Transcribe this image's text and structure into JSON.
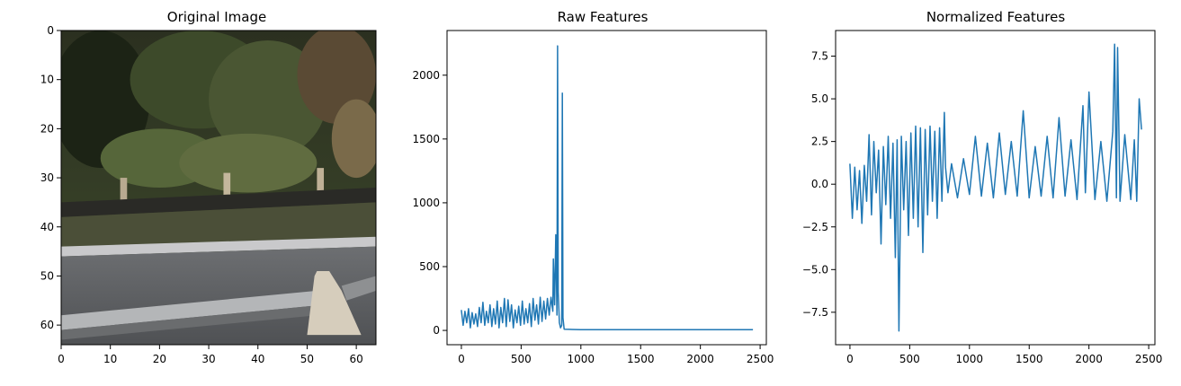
{
  "chart_data": [
    {
      "type": "image",
      "title": "Original Image",
      "xlim": [
        0,
        64
      ],
      "ylim": [
        64,
        0
      ],
      "xticks": [
        0,
        10,
        20,
        30,
        40,
        50,
        60
      ],
      "yticks": [
        0,
        10,
        20,
        30,
        40,
        50,
        60
      ],
      "xlabel": "",
      "ylabel": ""
    },
    {
      "type": "line",
      "title": "Raw Features",
      "xlabel": "",
      "ylabel": "",
      "xlim": [
        -120,
        2552
      ],
      "ylim": [
        -112,
        2350
      ],
      "xticks": [
        0,
        500,
        1000,
        1500,
        2000,
        2500
      ],
      "yticks": [
        0,
        500,
        1000,
        1500,
        2000
      ],
      "color": "#1f77b4",
      "series": [
        {
          "x": [
            0,
            15,
            30,
            45,
            60,
            75,
            90,
            105,
            120,
            135,
            150,
            165,
            180,
            195,
            210,
            225,
            240,
            255,
            270,
            285,
            300,
            315,
            330,
            345,
            360,
            375,
            390,
            405,
            420,
            435,
            450,
            465,
            480,
            495,
            510,
            525,
            540,
            555,
            570,
            585,
            600,
            615,
            630,
            645,
            660,
            675,
            690,
            705,
            720,
            735,
            750,
            765,
            770,
            780,
            790,
            800,
            805,
            810,
            820,
            830,
            840,
            845,
            850,
            860,
            900,
            1000,
            1500,
            2000,
            2440
          ],
          "y": [
            160,
            40,
            150,
            60,
            170,
            20,
            140,
            50,
            130,
            30,
            180,
            60,
            220,
            40,
            150,
            60,
            200,
            30,
            170,
            50,
            230,
            20,
            180,
            60,
            250,
            30,
            240,
            70,
            200,
            20,
            160,
            60,
            190,
            40,
            230,
            50,
            170,
            60,
            210,
            30,
            250,
            80,
            200,
            50,
            260,
            70,
            230,
            90,
            250,
            120,
            260,
            150,
            560,
            200,
            750,
            120,
            2230,
            300,
            60,
            20,
            40,
            1860,
            100,
            10,
            8,
            6,
            6,
            6,
            6
          ]
        }
      ]
    },
    {
      "type": "line",
      "title": "Normalized Features",
      "xlabel": "",
      "ylabel": "",
      "xlim": [
        -120,
        2552
      ],
      "ylim": [
        -9.4,
        9.0
      ],
      "xticks": [
        0,
        500,
        1000,
        1500,
        2000,
        2500
      ],
      "yticks": [
        -7.5,
        -5.0,
        -2.5,
        0.0,
        2.5,
        5.0,
        7.5
      ],
      "color": "#1f77b4",
      "series": [
        {
          "x": [
            0,
            20,
            40,
            60,
            80,
            100,
            120,
            140,
            160,
            180,
            200,
            220,
            240,
            260,
            280,
            300,
            320,
            340,
            360,
            380,
            395,
            410,
            430,
            450,
            470,
            490,
            510,
            530,
            550,
            570,
            590,
            610,
            630,
            650,
            670,
            690,
            710,
            730,
            750,
            770,
            790,
            800,
            820,
            850,
            900,
            950,
            1000,
            1050,
            1100,
            1150,
            1200,
            1250,
            1300,
            1350,
            1400,
            1450,
            1500,
            1550,
            1600,
            1650,
            1700,
            1750,
            1800,
            1850,
            1900,
            1950,
            1970,
            2000,
            2050,
            2100,
            2150,
            2200,
            2215,
            2230,
            2240,
            2260,
            2300,
            2350,
            2380,
            2400,
            2420,
            2440
          ],
          "y": [
            1.2,
            -2.0,
            1.0,
            -1.5,
            0.8,
            -2.3,
            1.1,
            -1.0,
            2.9,
            -1.8,
            2.5,
            -0.5,
            2.0,
            -3.5,
            2.2,
            -1.2,
            2.8,
            -2.0,
            2.4,
            -4.3,
            2.6,
            -8.6,
            2.8,
            -1.5,
            2.5,
            -3.0,
            3.0,
            -2.0,
            3.4,
            -2.5,
            3.3,
            -4.0,
            3.2,
            -1.8,
            3.4,
            -1.0,
            3.1,
            -2.0,
            3.3,
            -1.0,
            4.2,
            1.0,
            -0.5,
            1.2,
            -0.8,
            1.5,
            -0.6,
            2.8,
            -0.7,
            2.4,
            -0.8,
            3.0,
            -0.6,
            2.5,
            -0.7,
            4.3,
            -0.8,
            2.2,
            -0.7,
            2.8,
            -0.8,
            3.9,
            -0.7,
            2.6,
            -0.9,
            4.6,
            -0.5,
            5.4,
            -0.9,
            2.5,
            -1.0,
            3.1,
            8.2,
            -0.8,
            8.0,
            -1.0,
            2.9,
            -0.9,
            2.6,
            -1.0,
            5.0,
            3.2
          ]
        }
      ]
    }
  ]
}
